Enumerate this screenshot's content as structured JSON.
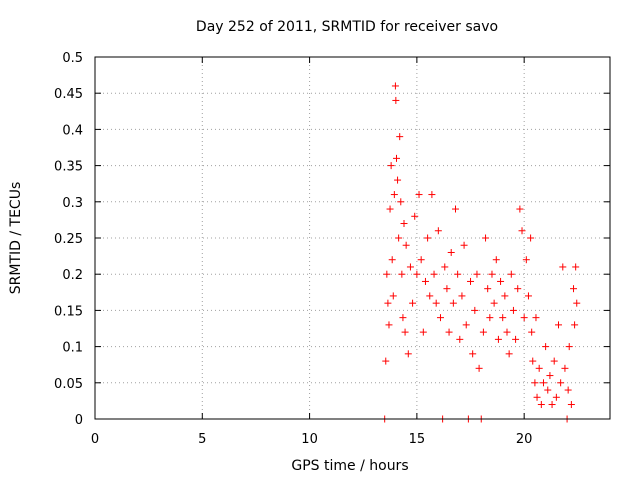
{
  "chart_data": {
    "type": "scatter",
    "title": "Day 252 of 2011, SRMTID for receiver savo",
    "xlabel": "GPS time / hours",
    "ylabel": "SRMTID / TECUs",
    "xlim": [
      0,
      24
    ],
    "ylim": [
      0,
      0.5
    ],
    "grid": true,
    "marker": "+",
    "series_color": "#ff0000",
    "x_ticks": [
      0,
      5,
      10,
      15,
      20
    ],
    "x_tick_labels": [
      "0",
      "5",
      "10",
      "15",
      "20"
    ],
    "y_ticks": [
      0,
      0.05,
      0.1,
      0.15,
      0.2,
      0.25,
      0.3,
      0.35,
      0.4,
      0.45,
      0.5
    ],
    "y_tick_labels": [
      "0",
      "0.05",
      "0.1",
      "0.15",
      "0.2",
      "0.25",
      "0.3",
      "0.35",
      "0.4",
      "0.45",
      "0.5"
    ],
    "series": [
      {
        "name": "SRMTID",
        "points": [
          [
            13.5,
            0.0
          ],
          [
            13.55,
            0.08
          ],
          [
            13.6,
            0.2
          ],
          [
            13.65,
            0.16
          ],
          [
            13.7,
            0.13
          ],
          [
            13.75,
            0.29
          ],
          [
            13.8,
            0.35
          ],
          [
            13.85,
            0.22
          ],
          [
            13.9,
            0.17
          ],
          [
            13.95,
            0.31
          ],
          [
            14.0,
            0.46
          ],
          [
            14.02,
            0.44
          ],
          [
            14.05,
            0.36
          ],
          [
            14.1,
            0.33
          ],
          [
            14.15,
            0.25
          ],
          [
            14.2,
            0.39
          ],
          [
            14.25,
            0.3
          ],
          [
            14.3,
            0.2
          ],
          [
            14.35,
            0.14
          ],
          [
            14.4,
            0.27
          ],
          [
            14.45,
            0.12
          ],
          [
            14.5,
            0.24
          ],
          [
            14.6,
            0.09
          ],
          [
            14.7,
            0.21
          ],
          [
            14.8,
            0.16
          ],
          [
            14.9,
            0.28
          ],
          [
            15.0,
            0.2
          ],
          [
            15.1,
            0.31
          ],
          [
            15.2,
            0.22
          ],
          [
            15.3,
            0.12
          ],
          [
            15.4,
            0.19
          ],
          [
            15.5,
            0.25
          ],
          [
            15.6,
            0.17
          ],
          [
            15.7,
            0.31
          ],
          [
            15.8,
            0.2
          ],
          [
            15.9,
            0.16
          ],
          [
            16.0,
            0.26
          ],
          [
            16.1,
            0.14
          ],
          [
            16.2,
            0.0
          ],
          [
            16.3,
            0.21
          ],
          [
            16.4,
            0.18
          ],
          [
            16.5,
            0.12
          ],
          [
            16.6,
            0.23
          ],
          [
            16.7,
            0.16
          ],
          [
            16.8,
            0.29
          ],
          [
            16.9,
            0.2
          ],
          [
            17.0,
            0.11
          ],
          [
            17.1,
            0.17
          ],
          [
            17.2,
            0.24
          ],
          [
            17.3,
            0.13
          ],
          [
            17.4,
            0.0
          ],
          [
            17.5,
            0.19
          ],
          [
            17.6,
            0.09
          ],
          [
            17.7,
            0.15
          ],
          [
            17.8,
            0.2
          ],
          [
            17.9,
            0.07
          ],
          [
            18.0,
            0.0
          ],
          [
            18.1,
            0.12
          ],
          [
            18.2,
            0.25
          ],
          [
            18.3,
            0.18
          ],
          [
            18.4,
            0.14
          ],
          [
            18.5,
            0.2
          ],
          [
            18.6,
            0.16
          ],
          [
            18.7,
            0.22
          ],
          [
            18.8,
            0.11
          ],
          [
            18.9,
            0.19
          ],
          [
            19.0,
            0.14
          ],
          [
            19.1,
            0.17
          ],
          [
            19.2,
            0.12
          ],
          [
            19.3,
            0.09
          ],
          [
            19.4,
            0.2
          ],
          [
            19.5,
            0.15
          ],
          [
            19.6,
            0.11
          ],
          [
            19.7,
            0.18
          ],
          [
            19.8,
            0.29
          ],
          [
            19.9,
            0.26
          ],
          [
            20.0,
            0.14
          ],
          [
            20.1,
            0.22
          ],
          [
            20.2,
            0.17
          ],
          [
            20.3,
            0.25
          ],
          [
            20.35,
            0.12
          ],
          [
            20.4,
            0.08
          ],
          [
            20.5,
            0.05
          ],
          [
            20.55,
            0.14
          ],
          [
            20.6,
            0.03
          ],
          [
            20.7,
            0.07
          ],
          [
            20.8,
            0.02
          ],
          [
            20.9,
            0.05
          ],
          [
            21.0,
            0.1
          ],
          [
            21.1,
            0.04
          ],
          [
            21.2,
            0.06
          ],
          [
            21.3,
            0.02
          ],
          [
            21.4,
            0.08
          ],
          [
            21.5,
            0.03
          ],
          [
            21.6,
            0.13
          ],
          [
            21.7,
            0.05
          ],
          [
            21.8,
            0.21
          ],
          [
            21.9,
            0.07
          ],
          [
            22.0,
            0.0
          ],
          [
            22.05,
            0.04
          ],
          [
            22.1,
            0.1
          ],
          [
            22.2,
            0.02
          ],
          [
            22.3,
            0.18
          ],
          [
            22.35,
            0.13
          ],
          [
            22.4,
            0.21
          ],
          [
            22.45,
            0.16
          ]
        ]
      }
    ]
  }
}
